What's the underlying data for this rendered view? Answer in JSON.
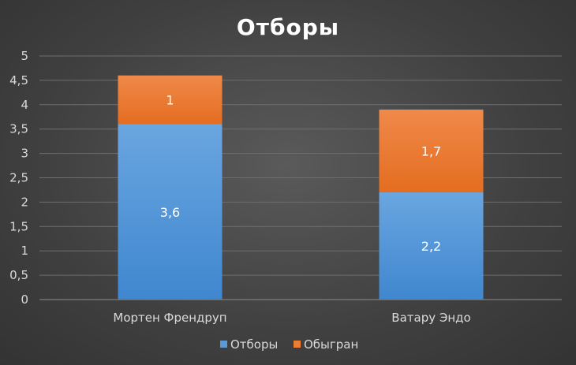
{
  "chart_data": {
    "type": "bar",
    "stacked": true,
    "title": "Отборы",
    "categories": [
      "Мортен Френдруп",
      "Ватару Эндо"
    ],
    "series": [
      {
        "name": "Отборы",
        "values": [
          3.6,
          2.2
        ],
        "labels": [
          "3,6",
          "2,2"
        ],
        "color": "#5b9bd5"
      },
      {
        "name": "Обыгран",
        "values": [
          1,
          1.7
        ],
        "labels": [
          "1",
          "1,7"
        ],
        "color": "#ed7d31"
      }
    ],
    "ylim": [
      0,
      5
    ],
    "yticks": [
      "0",
      "0,5",
      "1",
      "1,5",
      "2",
      "2,5",
      "3",
      "3,5",
      "4",
      "4,5",
      "5"
    ],
    "grid": true,
    "legend": "bottom"
  }
}
